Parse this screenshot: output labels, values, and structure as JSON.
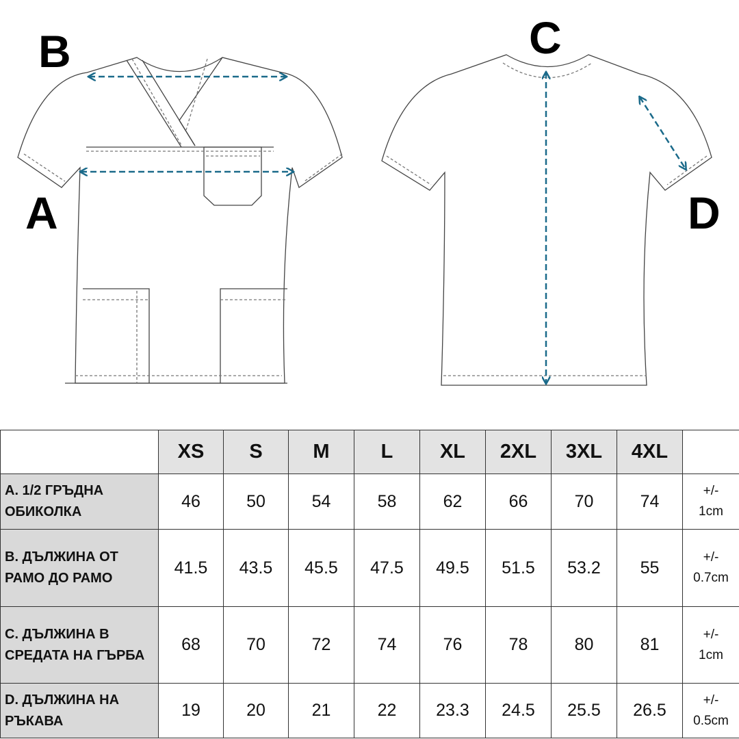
{
  "diagram": {
    "labels": {
      "a": "A",
      "b": "B",
      "c": "C",
      "d": "D"
    },
    "arrow_color": "#1a6a8a"
  },
  "table": {
    "sizes": [
      "XS",
      "S",
      "M",
      "L",
      "XL",
      "2XL",
      "3XL",
      "4XL"
    ],
    "rows": [
      {
        "label": "A. 1/2 ГРЪДНА ОБИКОЛКА",
        "values": [
          "46",
          "50",
          "54",
          "58",
          "62",
          "66",
          "70",
          "74"
        ],
        "tolerance_1": "+/-",
        "tolerance_2": "1cm"
      },
      {
        "label": "B. ДЪЛЖИНА ОТ РАМО ДО РАМО",
        "values": [
          "41.5",
          "43.5",
          "45.5",
          "47.5",
          "49.5",
          "51.5",
          "53.2",
          "55"
        ],
        "tolerance_1": "+/-",
        "tolerance_2": "0.7cm"
      },
      {
        "label": "C. ДЪЛЖИНА В СРЕДАТА НА ГЪРБА",
        "values": [
          "68",
          "70",
          "72",
          "74",
          "76",
          "78",
          "80",
          "81"
        ],
        "tolerance_1": "+/-",
        "tolerance_2": "1cm"
      },
      {
        "label": "D. ДЪЛЖИНА НА РЪКАВА",
        "values": [
          "19",
          "20",
          "21",
          "22",
          "23.3",
          "24.5",
          "25.5",
          "26.5"
        ],
        "tolerance_1": "+/-",
        "tolerance_2": "0.5cm"
      }
    ],
    "header_bg": "#e3e3e3",
    "label_bg": "#d9d9d9"
  }
}
